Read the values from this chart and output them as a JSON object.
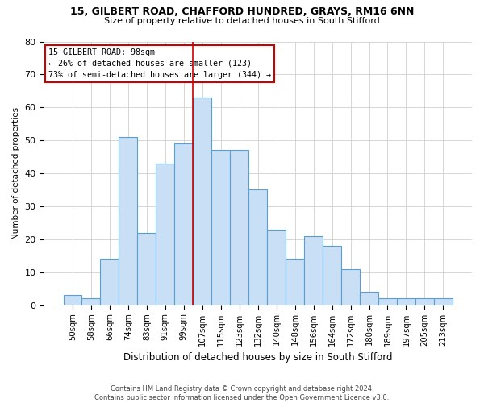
{
  "title1": "15, GILBERT ROAD, CHAFFORD HUNDRED, GRAYS, RM16 6NN",
  "title2": "Size of property relative to detached houses in South Stifford",
  "xlabel": "Distribution of detached houses by size in South Stifford",
  "ylabel": "Number of detached properties",
  "footnote1": "Contains HM Land Registry data © Crown copyright and database right 2024.",
  "footnote2": "Contains public sector information licensed under the Open Government Licence v3.0.",
  "bar_labels": [
    "50sqm",
    "58sqm",
    "66sqm",
    "74sqm",
    "83sqm",
    "91sqm",
    "99sqm",
    "107sqm",
    "115sqm",
    "123sqm",
    "132sqm",
    "140sqm",
    "148sqm",
    "156sqm",
    "164sqm",
    "172sqm",
    "180sqm",
    "189sqm",
    "197sqm",
    "205sqm",
    "213sqm"
  ],
  "bar_values": [
    3,
    2,
    14,
    51,
    22,
    43,
    49,
    63,
    47,
    47,
    35,
    23,
    14,
    21,
    18,
    11,
    4,
    2,
    2,
    2,
    2
  ],
  "bar_color": "#c9dff5",
  "bar_edge_color": "#5a9fd4",
  "grid_color": "#d0d0d0",
  "property_line_x": 6.5,
  "property_line_color": "#cc0000",
  "annotation_text": "15 GILBERT ROAD: 98sqm\n← 26% of detached houses are smaller (123)\n73% of semi-detached houses are larger (344) →",
  "annotation_box_color": "#cc0000",
  "ylim": [
    0,
    80
  ],
  "yticks": [
    0,
    10,
    20,
    30,
    40,
    50,
    60,
    70,
    80
  ],
  "background_color": "#ffffff"
}
